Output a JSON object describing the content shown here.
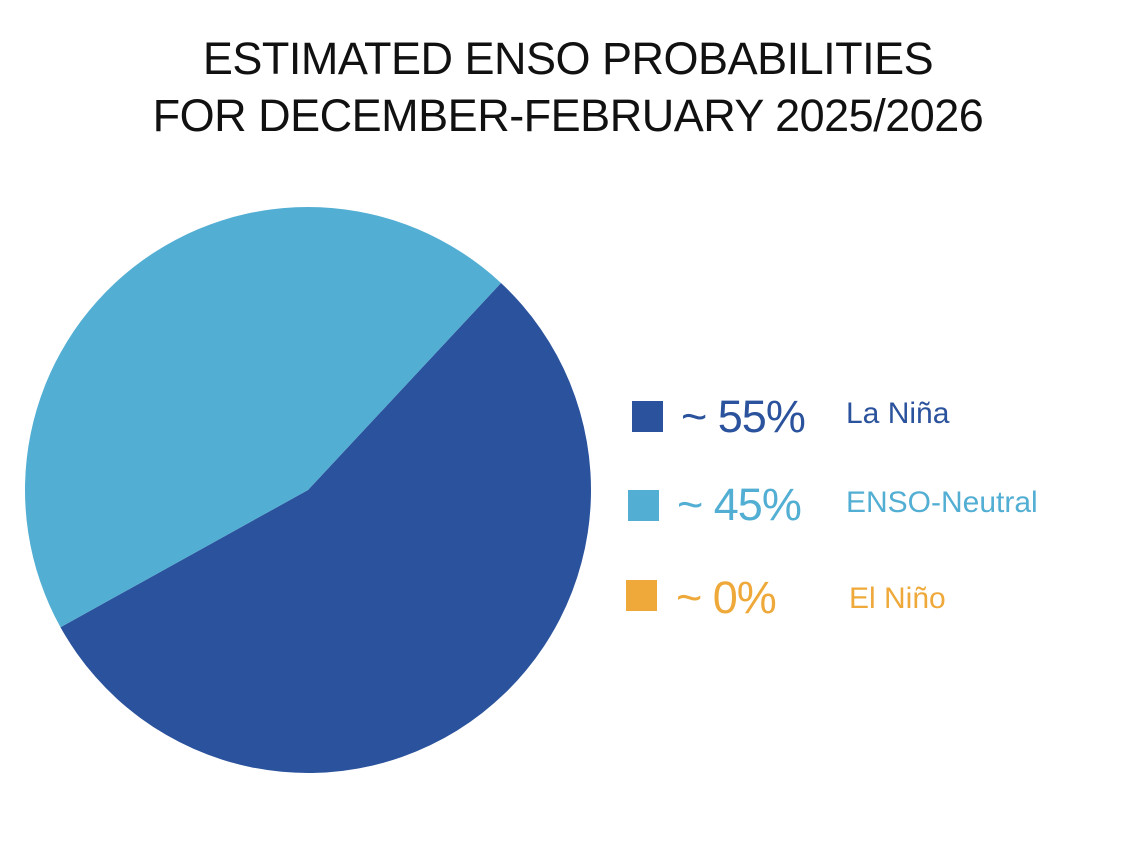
{
  "chart_data": {
    "type": "pie",
    "title": [
      "ESTIMATED ENSO PROBABILITIES",
      "FOR DECEMBER-FEBRUARY 2025/2026"
    ],
    "slices": [
      {
        "label": "La Niña",
        "value": 55,
        "value_label": "~ 55%",
        "color": "#2B529C"
      },
      {
        "label": "ENSO-Neutral",
        "value": 45,
        "value_label": "~ 45%",
        "color": "#52AED3"
      },
      {
        "label": "El Niño",
        "value": 0,
        "value_label": "~ 0%",
        "color": "#EEA93A"
      }
    ],
    "legend_position": "right"
  }
}
